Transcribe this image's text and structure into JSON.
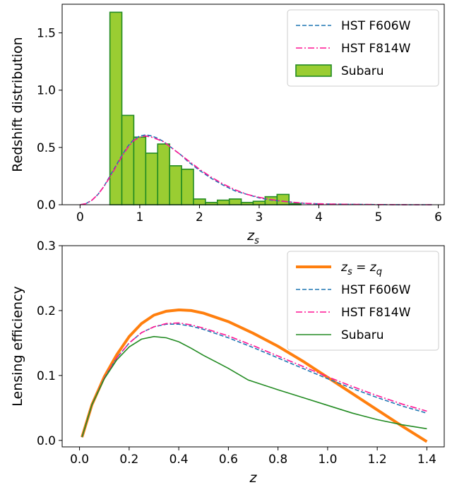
{
  "chart_data": [
    {
      "type": "bar",
      "xlabel": "z_s",
      "ylabel": "Redshift distribution",
      "xlim": [
        -0.3,
        6.1
      ],
      "ylim": [
        0,
        1.75
      ],
      "xticks": [
        "0",
        "1",
        "2",
        "3",
        "4",
        "5",
        "6"
      ],
      "yticks": [
        "0.0",
        "0.5",
        "1.0",
        "1.5"
      ],
      "grid": false,
      "legend_position": "top-right",
      "histogram": {
        "name": "Subaru",
        "color": "#9acd32",
        "edge_color": "#228b22",
        "bin_width": 0.2,
        "bins": [
          {
            "x0": 0.5,
            "value": 1.68
          },
          {
            "x0": 0.7,
            "value": 0.78
          },
          {
            "x0": 0.9,
            "value": 0.59
          },
          {
            "x0": 1.1,
            "value": 0.45
          },
          {
            "x0": 1.3,
            "value": 0.53
          },
          {
            "x0": 1.5,
            "value": 0.34
          },
          {
            "x0": 1.7,
            "value": 0.31
          },
          {
            "x0": 1.9,
            "value": 0.05
          },
          {
            "x0": 2.1,
            "value": 0.02
          },
          {
            "x0": 2.3,
            "value": 0.04
          },
          {
            "x0": 2.5,
            "value": 0.05
          },
          {
            "x0": 2.7,
            "value": 0.02
          },
          {
            "x0": 2.9,
            "value": 0.03
          },
          {
            "x0": 3.1,
            "value": 0.07
          },
          {
            "x0": 3.3,
            "value": 0.09
          },
          {
            "x0": 3.5,
            "value": 0.01
          }
        ]
      },
      "series": [
        {
          "name": "HST F606W",
          "color": "#1f77b4",
          "style": "dashed",
          "x": [
            0,
            0.1,
            0.2,
            0.3,
            0.4,
            0.5,
            0.6,
            0.7,
            0.8,
            0.9,
            1.0,
            1.1,
            1.2,
            1.3,
            1.4,
            1.5,
            1.6,
            1.7,
            1.8,
            1.9,
            2.0,
            2.2,
            2.4,
            2.6,
            2.8,
            3.0,
            3.2,
            3.4,
            3.6,
            3.8,
            4.0,
            4.3,
            4.6,
            5.0,
            5.5,
            5.9
          ],
          "y": [
            0,
            0.01,
            0.04,
            0.09,
            0.16,
            0.25,
            0.34,
            0.43,
            0.51,
            0.57,
            0.6,
            0.61,
            0.6,
            0.58,
            0.55,
            0.51,
            0.47,
            0.43,
            0.38,
            0.34,
            0.3,
            0.23,
            0.17,
            0.12,
            0.09,
            0.06,
            0.04,
            0.03,
            0.02,
            0.01,
            0.008,
            0.005,
            0.003,
            0.001,
            0,
            0
          ]
        },
        {
          "name": "HST F814W",
          "color": "#ff1493",
          "style": "dashdot",
          "x": [
            0,
            0.1,
            0.2,
            0.3,
            0.4,
            0.5,
            0.6,
            0.7,
            0.8,
            0.9,
            1.0,
            1.1,
            1.2,
            1.3,
            1.4,
            1.5,
            1.6,
            1.7,
            1.8,
            1.9,
            2.0,
            2.2,
            2.4,
            2.6,
            2.8,
            3.0,
            3.2,
            3.4,
            3.6,
            3.8,
            4.0,
            4.3,
            4.6,
            5.0,
            5.5,
            5.9
          ],
          "y": [
            0,
            0.01,
            0.04,
            0.09,
            0.16,
            0.24,
            0.33,
            0.42,
            0.5,
            0.56,
            0.59,
            0.6,
            0.59,
            0.57,
            0.55,
            0.51,
            0.47,
            0.43,
            0.39,
            0.35,
            0.31,
            0.24,
            0.18,
            0.13,
            0.09,
            0.065,
            0.045,
            0.03,
            0.02,
            0.012,
            0.008,
            0.005,
            0.003,
            0.001,
            0,
            0
          ]
        }
      ]
    },
    {
      "type": "line",
      "xlabel": "z",
      "ylabel": "Lensing efficiency",
      "xlim": [
        -0.07,
        1.47
      ],
      "ylim": [
        -0.01,
        0.3
      ],
      "xticks": [
        "0.0",
        "0.2",
        "0.4",
        "0.6",
        "0.8",
        "1.0",
        "1.2",
        "1.4"
      ],
      "yticks": [
        "0.0",
        "0.1",
        "0.2",
        "0.3"
      ],
      "grid": false,
      "legend_position": "top-right",
      "series": [
        {
          "name": "z_s = z_q",
          "color": "#ff7f0e",
          "style": "solid",
          "width": 4,
          "x": [
            0.01,
            0.05,
            0.1,
            0.15,
            0.2,
            0.25,
            0.3,
            0.35,
            0.4,
            0.45,
            0.5,
            0.6,
            0.7,
            0.8,
            0.9,
            1.0,
            1.1,
            1.2,
            1.3,
            1.4
          ],
          "y": [
            0.005,
            0.055,
            0.098,
            0.132,
            0.16,
            0.18,
            0.193,
            0.199,
            0.201,
            0.2,
            0.196,
            0.183,
            0.165,
            0.145,
            0.122,
            0.097,
            0.072,
            0.047,
            0.022,
            -0.002
          ]
        },
        {
          "name": "HST F606W",
          "color": "#1f77b4",
          "style": "dashed",
          "x": [
            0.01,
            0.05,
            0.1,
            0.15,
            0.2,
            0.25,
            0.3,
            0.35,
            0.4,
            0.45,
            0.5,
            0.6,
            0.7,
            0.8,
            0.9,
            1.0,
            1.1,
            1.2,
            1.3,
            1.4
          ],
          "y": [
            0.005,
            0.055,
            0.096,
            0.127,
            0.15,
            0.166,
            0.175,
            0.179,
            0.179,
            0.176,
            0.171,
            0.158,
            0.143,
            0.127,
            0.111,
            0.095,
            0.08,
            0.066,
            0.053,
            0.042
          ]
        },
        {
          "name": "HST F814W",
          "color": "#ff1493",
          "style": "dashdot",
          "x": [
            0.01,
            0.05,
            0.1,
            0.15,
            0.2,
            0.25,
            0.3,
            0.35,
            0.4,
            0.45,
            0.5,
            0.6,
            0.7,
            0.8,
            0.9,
            1.0,
            1.1,
            1.2,
            1.3,
            1.4
          ],
          "y": [
            0.005,
            0.055,
            0.096,
            0.127,
            0.15,
            0.166,
            0.175,
            0.18,
            0.181,
            0.178,
            0.173,
            0.161,
            0.146,
            0.13,
            0.114,
            0.098,
            0.083,
            0.069,
            0.056,
            0.045
          ]
        },
        {
          "name": "Subaru",
          "color": "#228b22",
          "style": "solid",
          "x": [
            0.01,
            0.05,
            0.1,
            0.15,
            0.2,
            0.25,
            0.3,
            0.35,
            0.4,
            0.45,
            0.5,
            0.55,
            0.6,
            0.68,
            0.8,
            0.9,
            1.0,
            1.1,
            1.2,
            1.3,
            1.4
          ],
          "y": [
            0.005,
            0.055,
            0.095,
            0.124,
            0.144,
            0.156,
            0.16,
            0.158,
            0.152,
            0.142,
            0.131,
            0.121,
            0.111,
            0.093,
            0.078,
            0.066,
            0.054,
            0.042,
            0.032,
            0.024,
            0.018
          ]
        }
      ]
    }
  ]
}
